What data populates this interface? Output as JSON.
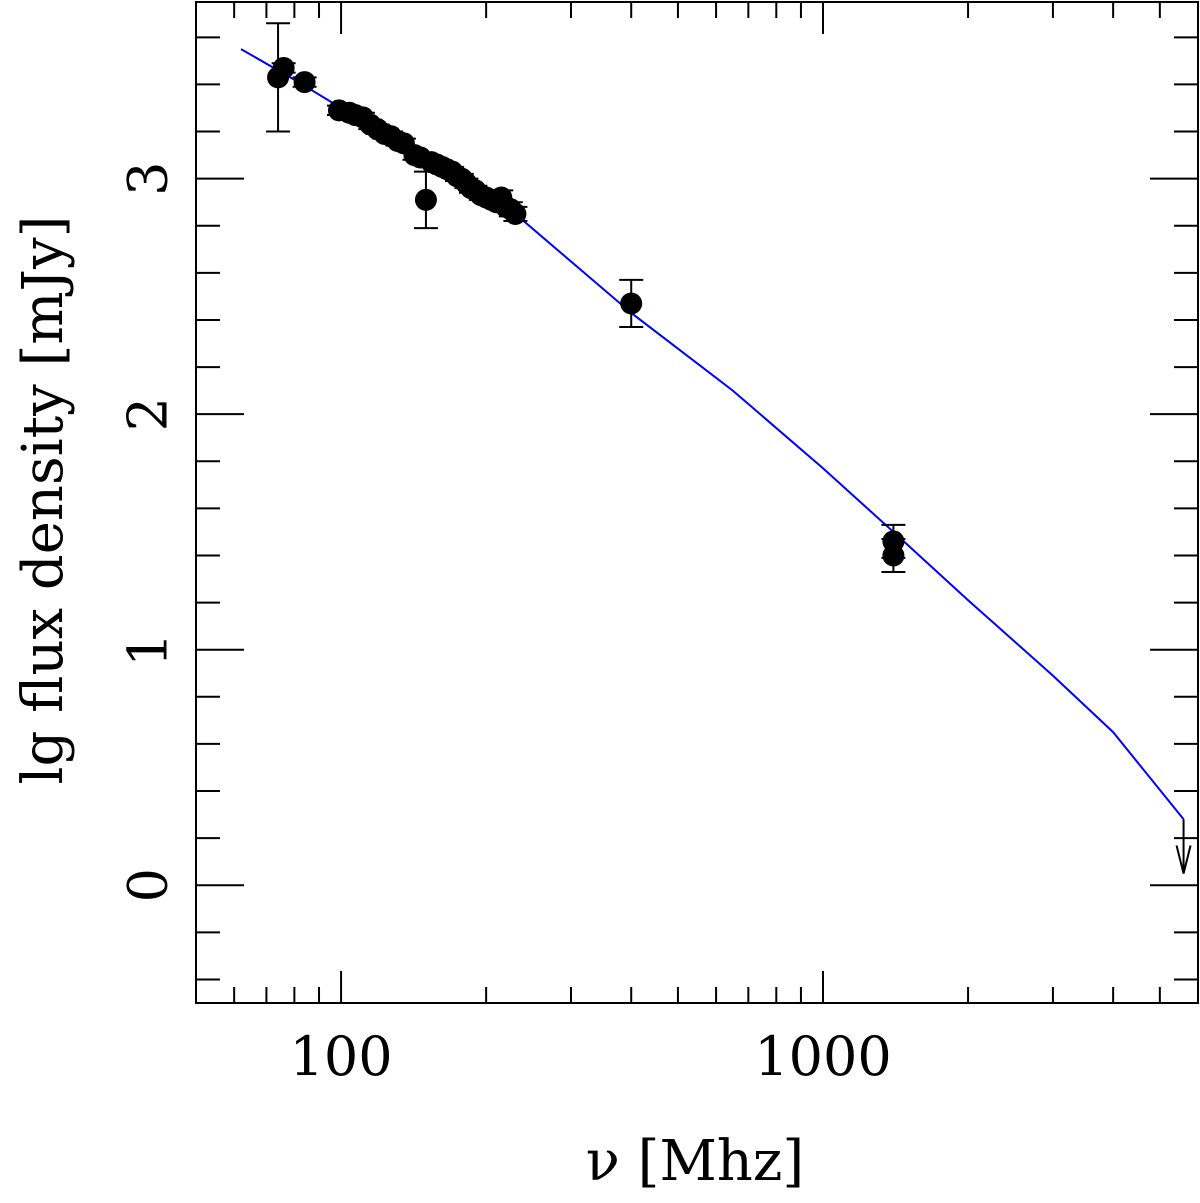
{
  "chart_data": {
    "type": "scatter",
    "title": "",
    "xlabel": "ν [Mhz]",
    "ylabel": "lg flux density [mJy]",
    "x_scale": "log",
    "xlim": [
      50,
      6000
    ],
    "ylim": [
      -0.5,
      3.75
    ],
    "x_tick_labels": [
      {
        "value": 100,
        "label": "100"
      },
      {
        "value": 1000,
        "label": "1000"
      }
    ],
    "y_tick_labels": [
      {
        "value": 0,
        "label": "0"
      },
      {
        "value": 1,
        "label": "1"
      },
      {
        "value": 2,
        "label": "2"
      },
      {
        "value": 3,
        "label": "3"
      }
    ],
    "grid": false,
    "colors": {
      "points": "#000000",
      "fit": "#0000ff",
      "axes": "#000000"
    },
    "series": [
      {
        "kind": "points",
        "points": [
          {
            "x": 74,
            "y": 3.43,
            "err": 0.23
          },
          {
            "x": 76,
            "y": 3.47,
            "err": 0.02
          },
          {
            "x": 84,
            "y": 3.41,
            "err": 0.02
          },
          {
            "x": 99,
            "y": 3.29,
            "err": 0.02
          },
          {
            "x": 104,
            "y": 3.28,
            "err": 0.02
          },
          {
            "x": 107,
            "y": 3.27,
            "err": 0.02
          },
          {
            "x": 111,
            "y": 3.26,
            "err": 0.02
          },
          {
            "x": 115,
            "y": 3.23,
            "err": 0.02
          },
          {
            "x": 119,
            "y": 3.21,
            "err": 0.02
          },
          {
            "x": 123,
            "y": 3.19,
            "err": 0.02
          },
          {
            "x": 127,
            "y": 3.18,
            "err": 0.02
          },
          {
            "x": 131,
            "y": 3.16,
            "err": 0.02
          },
          {
            "x": 135,
            "y": 3.15,
            "err": 0.02
          },
          {
            "x": 142,
            "y": 3.1,
            "err": 0.02
          },
          {
            "x": 146,
            "y": 3.09,
            "err": 0.02
          },
          {
            "x": 150,
            "y": 2.91,
            "err": 0.12
          },
          {
            "x": 154,
            "y": 3.07,
            "err": 0.02
          },
          {
            "x": 158,
            "y": 3.06,
            "err": 0.02
          },
          {
            "x": 162,
            "y": 3.05,
            "err": 0.02
          },
          {
            "x": 166,
            "y": 3.04,
            "err": 0.02
          },
          {
            "x": 170,
            "y": 3.03,
            "err": 0.02
          },
          {
            "x": 174,
            "y": 3.01,
            "err": 0.02
          },
          {
            "x": 178,
            "y": 3.0,
            "err": 0.02
          },
          {
            "x": 182,
            "y": 2.98,
            "err": 0.02
          },
          {
            "x": 186,
            "y": 2.96,
            "err": 0.02
          },
          {
            "x": 190,
            "y": 2.95,
            "err": 0.02
          },
          {
            "x": 195,
            "y": 2.93,
            "err": 0.02
          },
          {
            "x": 200,
            "y": 2.92,
            "err": 0.02
          },
          {
            "x": 205,
            "y": 2.91,
            "err": 0.02
          },
          {
            "x": 210,
            "y": 2.9,
            "err": 0.02
          },
          {
            "x": 215,
            "y": 2.92,
            "err": 0.03
          },
          {
            "x": 220,
            "y": 2.88,
            "err": 0.02
          },
          {
            "x": 225,
            "y": 2.87,
            "err": 0.03
          },
          {
            "x": 230,
            "y": 2.85,
            "err": 0.03
          },
          {
            "x": 400,
            "y": 2.47,
            "err": 0.1
          },
          {
            "x": 1400,
            "y": 1.46,
            "err": 0.07
          },
          {
            "x": 1400,
            "y": 1.4,
            "err": 0.07
          }
        ]
      },
      {
        "kind": "fit",
        "x": [
          62,
          80,
          100,
          150,
          230,
          400,
          650,
          1000,
          1400,
          2000,
          3000,
          4000,
          5600
        ],
        "y": [
          3.55,
          3.42,
          3.3,
          3.08,
          2.85,
          2.43,
          2.1,
          1.77,
          1.5,
          1.21,
          0.89,
          0.65,
          0.28
        ]
      }
    ],
    "annotations": [
      {
        "kind": "upper-limit-arrow",
        "x": 5600,
        "y_from": 0.28,
        "y_to": 0.05
      }
    ]
  }
}
